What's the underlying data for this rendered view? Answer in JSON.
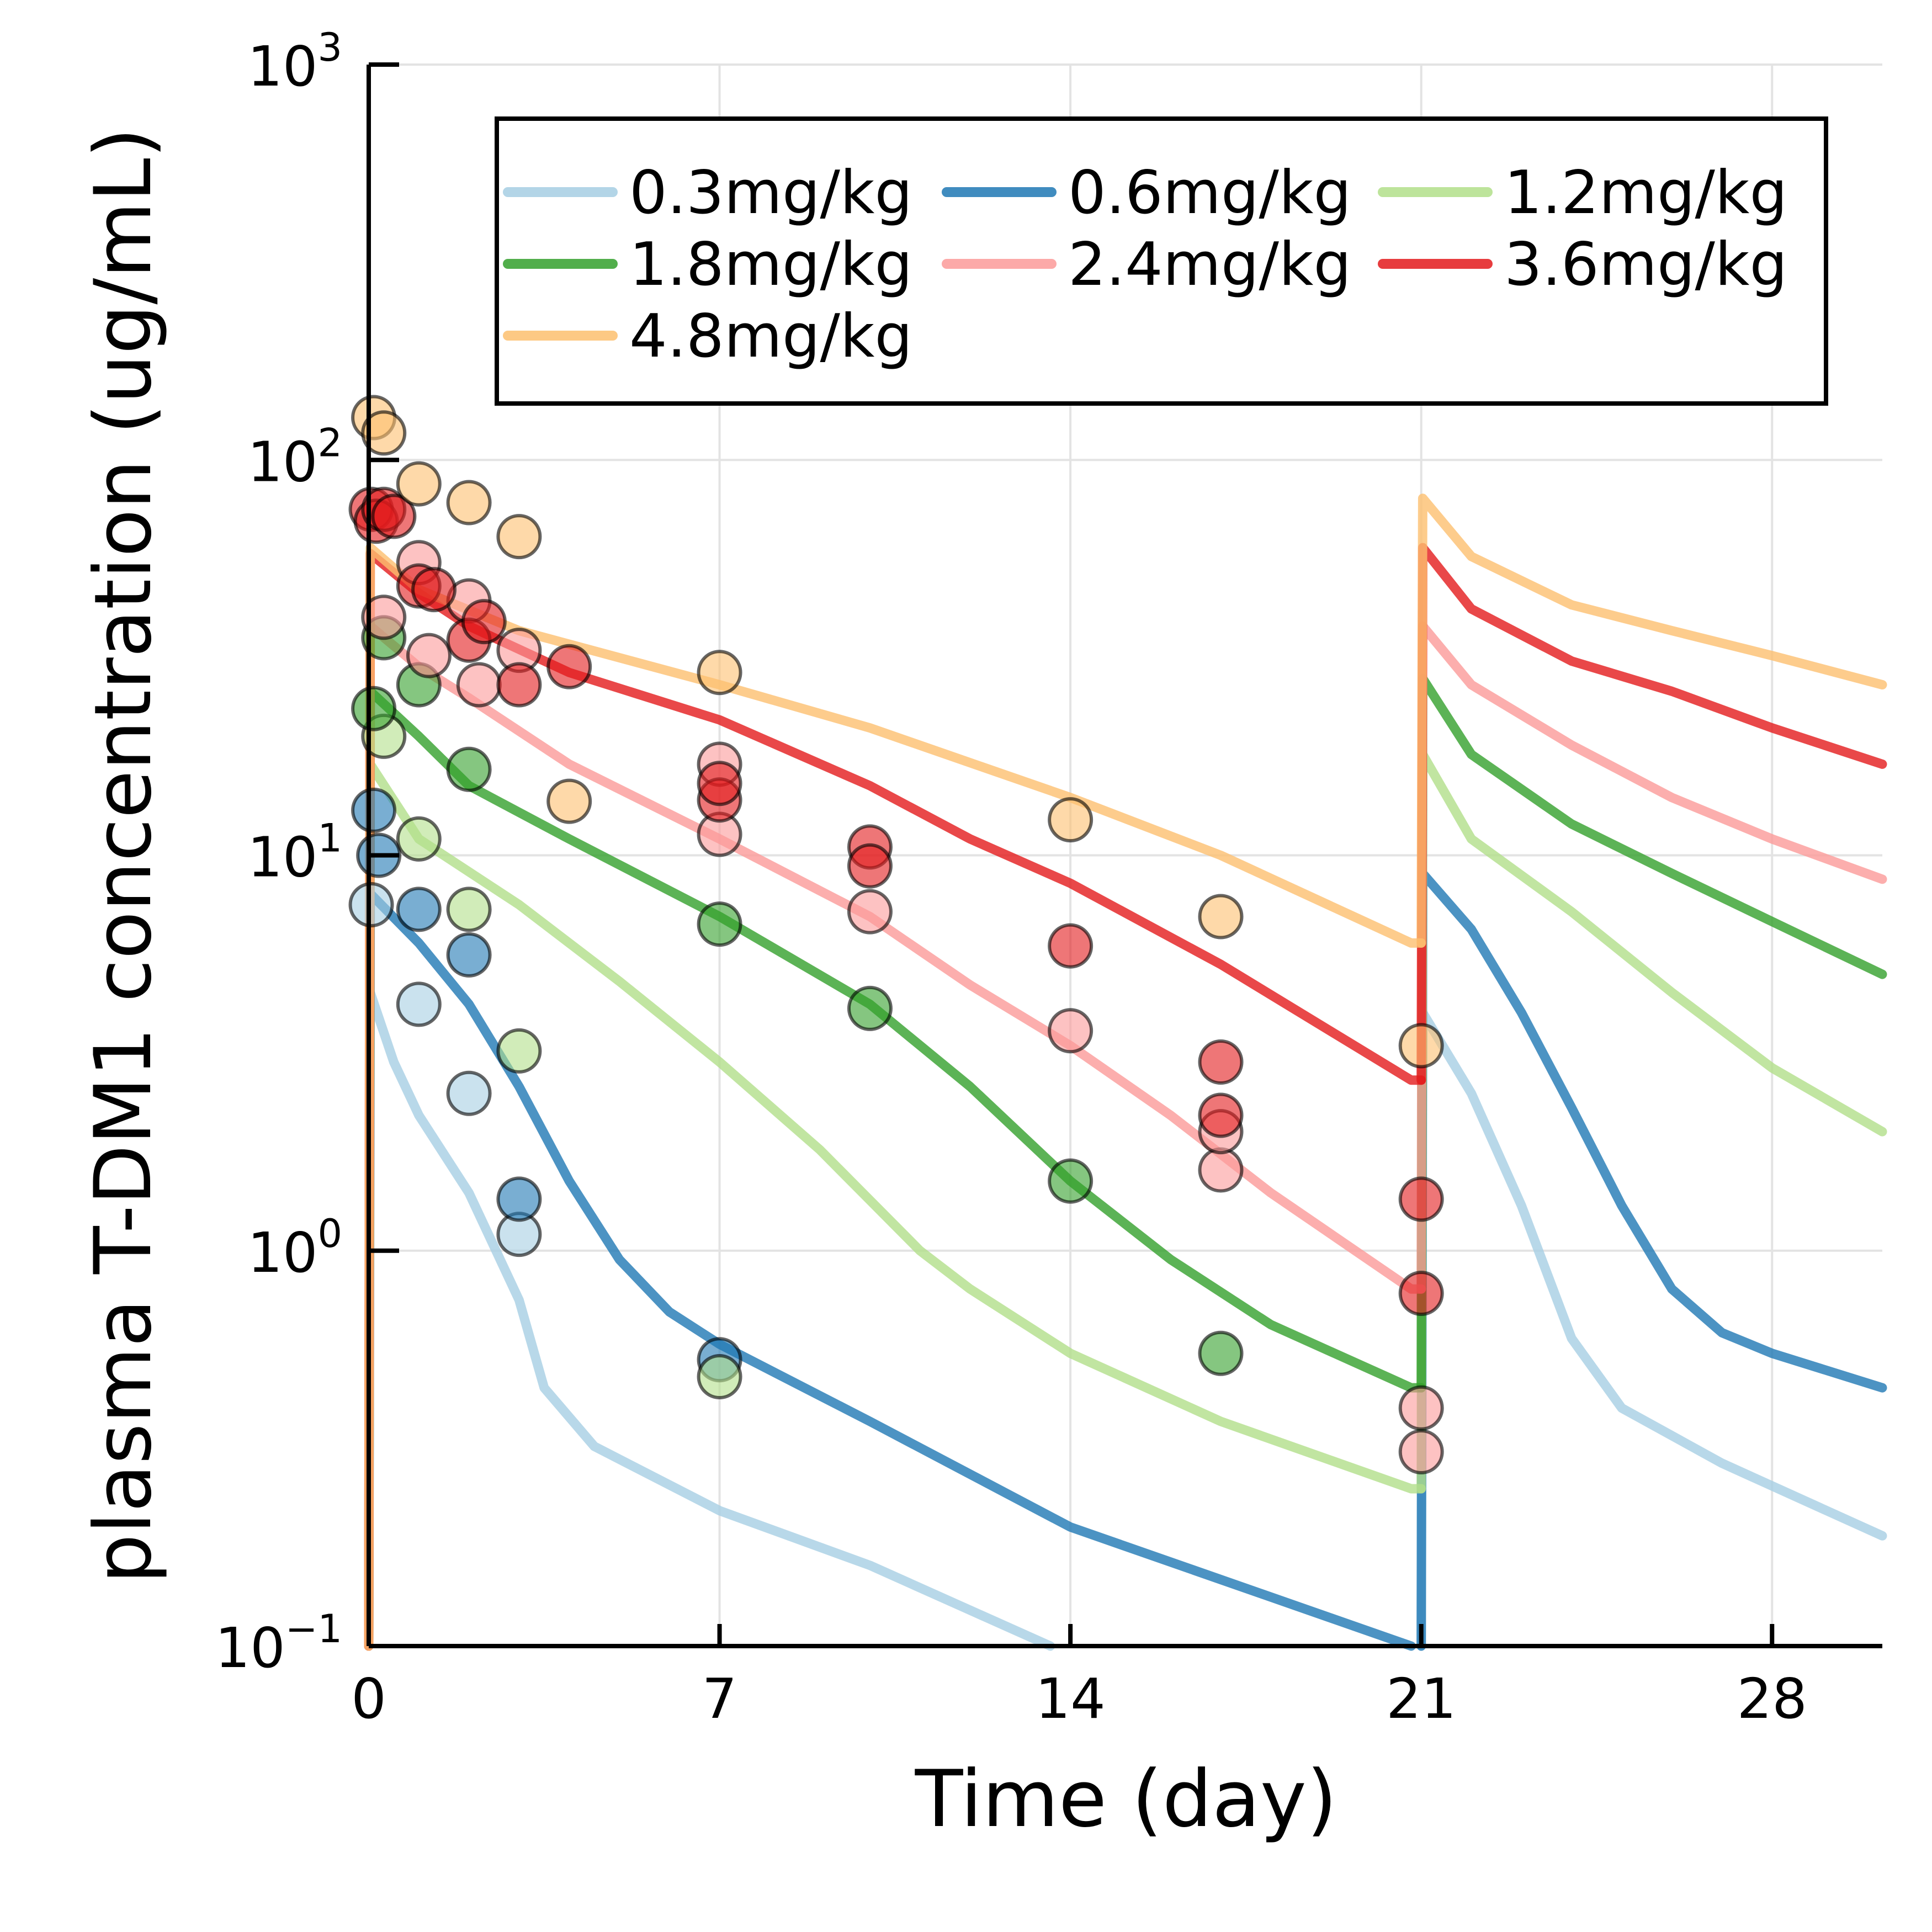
{
  "chart_data": {
    "type": "line",
    "title": "",
    "xlabel": "Time (day)",
    "ylabel": "plasma T-DM1 concentration (ug/mL)",
    "xlim": [
      0,
      30.2
    ],
    "ylim": [
      0.1,
      1000
    ],
    "yscale": "log",
    "x_ticks": [
      0,
      7,
      14,
      21,
      28
    ],
    "y_ticks": [
      {
        "value": 0.1,
        "base": "10",
        "exp": "−1"
      },
      {
        "value": 1,
        "base": "10",
        "exp": "0"
      },
      {
        "value": 10,
        "base": "10",
        "exp": "1"
      },
      {
        "value": 100,
        "base": "10",
        "exp": "2"
      },
      {
        "value": 1000,
        "base": "10",
        "exp": "3"
      }
    ],
    "grid": true,
    "legend_position": "top-right",
    "series": [
      {
        "name": "0.3mg/kg",
        "color": "#a6cee3",
        "line": [
          [
            0,
            0.1
          ],
          [
            0.03,
            4.5
          ],
          [
            0.5,
            3.0
          ],
          [
            1,
            2.2
          ],
          [
            2,
            1.4
          ],
          [
            3,
            0.75
          ],
          [
            3.5,
            0.45
          ],
          [
            4.5,
            0.32
          ],
          [
            7,
            0.22
          ],
          [
            10,
            0.16
          ],
          [
            13.6,
            0.1
          ]
        ],
        "line2": [
          [
            21,
            0.1
          ],
          [
            21.03,
            4.0
          ],
          [
            22,
            2.5
          ],
          [
            23,
            1.3
          ],
          [
            24,
            0.6
          ],
          [
            25,
            0.4
          ],
          [
            27,
            0.29
          ],
          [
            30.2,
            0.19
          ]
        ],
        "points": [
          [
            0.05,
            7.5
          ],
          [
            1,
            4.2
          ],
          [
            2,
            2.5
          ],
          [
            3,
            1.1
          ]
        ]
      },
      {
        "name": "0.6mg/kg",
        "color": "#1f78b4",
        "line": [
          [
            0,
            0.1
          ],
          [
            0.03,
            8.0
          ],
          [
            1,
            6.0
          ],
          [
            2,
            4.2
          ],
          [
            3,
            2.6
          ],
          [
            4,
            1.5
          ],
          [
            5,
            0.95
          ],
          [
            6,
            0.7
          ],
          [
            7,
            0.58
          ],
          [
            10,
            0.37
          ],
          [
            14,
            0.2
          ],
          [
            20.8,
            0.1
          ]
        ],
        "line2": [
          [
            21,
            0.1
          ],
          [
            21.03,
            9.0
          ],
          [
            22,
            6.5
          ],
          [
            23,
            4.0
          ],
          [
            24,
            2.3
          ],
          [
            25,
            1.3
          ],
          [
            26,
            0.8
          ],
          [
            27,
            0.62
          ],
          [
            28,
            0.55
          ],
          [
            30.2,
            0.45
          ]
        ],
        "points": [
          [
            0.1,
            13
          ],
          [
            0.2,
            10
          ],
          [
            1,
            7.3
          ],
          [
            2,
            5.6
          ],
          [
            3,
            1.35
          ],
          [
            7,
            0.53
          ]
        ]
      },
      {
        "name": "1.2mg/kg",
        "color": "#b2df8a",
        "line": [
          [
            0,
            0.1
          ],
          [
            0.03,
            17
          ],
          [
            1,
            11
          ],
          [
            3,
            7.5
          ],
          [
            5,
            4.8
          ],
          [
            7,
            3.0
          ],
          [
            9,
            1.8
          ],
          [
            11,
            1.0
          ],
          [
            12,
            0.8
          ],
          [
            14,
            0.55
          ],
          [
            17,
            0.37
          ],
          [
            20.8,
            0.25
          ],
          [
            21,
            0.25
          ]
        ],
        "line2": [
          [
            21,
            0.25
          ],
          [
            21.03,
            18
          ],
          [
            22,
            11
          ],
          [
            24,
            7.2
          ],
          [
            26,
            4.5
          ],
          [
            28,
            2.9
          ],
          [
            30.2,
            2.0
          ]
        ],
        "points": [
          [
            0.3,
            20
          ],
          [
            1,
            11
          ],
          [
            2,
            7.3
          ],
          [
            3,
            3.2
          ],
          [
            7,
            0.48
          ]
        ]
      },
      {
        "name": "1.8mg/kg",
        "color": "#33a02c",
        "line": [
          [
            0,
            0.1
          ],
          [
            0.03,
            26
          ],
          [
            1,
            20
          ],
          [
            2,
            15
          ],
          [
            4,
            11
          ],
          [
            7,
            7.0
          ],
          [
            10,
            4.2
          ],
          [
            12,
            2.6
          ],
          [
            14,
            1.5
          ],
          [
            16,
            0.95
          ],
          [
            18,
            0.65
          ],
          [
            20.8,
            0.45
          ],
          [
            21,
            0.45
          ]
        ],
        "line2": [
          [
            21,
            0.45
          ],
          [
            21.03,
            28
          ],
          [
            22,
            18
          ],
          [
            24,
            12
          ],
          [
            26,
            9.0
          ],
          [
            28,
            6.8
          ],
          [
            30.2,
            5.0
          ]
        ],
        "points": [
          [
            0.1,
            23.5
          ],
          [
            0.3,
            35.5
          ],
          [
            1,
            27
          ],
          [
            2,
            16.5
          ],
          [
            7,
            6.7
          ],
          [
            10,
            4.1
          ],
          [
            14,
            1.5
          ],
          [
            17,
            0.55
          ]
        ]
      },
      {
        "name": "2.4mg/kg",
        "color": "#fb9a99",
        "line": [
          [
            0,
            0.1
          ],
          [
            0.03,
            38
          ],
          [
            1,
            30
          ],
          [
            2,
            25
          ],
          [
            4,
            17
          ],
          [
            7,
            11
          ],
          [
            10,
            7.0
          ],
          [
            12,
            4.7
          ],
          [
            14,
            3.3
          ],
          [
            16,
            2.2
          ],
          [
            18,
            1.4
          ],
          [
            20.8,
            0.8
          ],
          [
            21,
            0.8
          ]
        ],
        "line2": [
          [
            21,
            0.8
          ],
          [
            21.03,
            38
          ],
          [
            22,
            27
          ],
          [
            24,
            19
          ],
          [
            26,
            14
          ],
          [
            28,
            11
          ],
          [
            30.2,
            8.7
          ]
        ],
        "points": [
          [
            0.3,
            40
          ],
          [
            1,
            55
          ],
          [
            1.2,
            32
          ],
          [
            2,
            44
          ],
          [
            2.2,
            27
          ],
          [
            3,
            33
          ],
          [
            7,
            17
          ],
          [
            7,
            11.3
          ],
          [
            10,
            7.2
          ],
          [
            14,
            3.6
          ],
          [
            17,
            1.6
          ],
          [
            17,
            2.0
          ],
          [
            21,
            0.4
          ],
          [
            21,
            0.31
          ]
        ]
      },
      {
        "name": "3.6mg/kg",
        "color": "#e31a1c",
        "line": [
          [
            0,
            0.1
          ],
          [
            0.03,
            58
          ],
          [
            1,
            46
          ],
          [
            2,
            38
          ],
          [
            4,
            29
          ],
          [
            7,
            22
          ],
          [
            10,
            15
          ],
          [
            12,
            11
          ],
          [
            14,
            8.5
          ],
          [
            17,
            5.3
          ],
          [
            20.8,
            2.7
          ],
          [
            21,
            2.7
          ]
        ],
        "line2": [
          [
            21,
            2.7
          ],
          [
            21.03,
            60
          ],
          [
            22,
            42
          ],
          [
            24,
            31
          ],
          [
            26,
            26
          ],
          [
            28,
            21
          ],
          [
            30.2,
            17
          ]
        ],
        "points": [
          [
            0.05,
            75
          ],
          [
            0.15,
            70
          ],
          [
            0.3,
            75
          ],
          [
            0.5,
            72
          ],
          [
            1,
            48
          ],
          [
            1.3,
            47
          ],
          [
            2,
            35
          ],
          [
            2.3,
            39
          ],
          [
            3,
            27
          ],
          [
            4,
            30
          ],
          [
            7,
            13.8
          ],
          [
            7,
            15.2
          ],
          [
            10,
            10.5
          ],
          [
            10,
            9.4
          ],
          [
            14,
            5.9
          ],
          [
            17,
            3.0
          ],
          [
            17,
            2.2
          ],
          [
            21,
            1.35
          ],
          [
            21,
            0.78
          ]
        ]
      },
      {
        "name": "4.8mg/kg",
        "color": "#fdbf6f",
        "line": [
          [
            0,
            0.1
          ],
          [
            0.03,
            60
          ],
          [
            1,
            47
          ],
          [
            3,
            37
          ],
          [
            7,
            27
          ],
          [
            10,
            21
          ],
          [
            14,
            14
          ],
          [
            17,
            10
          ],
          [
            20.8,
            6.0
          ],
          [
            21,
            6.0
          ]
        ],
        "line2": [
          [
            21,
            6.0
          ],
          [
            21.03,
            80
          ],
          [
            22,
            57
          ],
          [
            24,
            43
          ],
          [
            26,
            37
          ],
          [
            28,
            32
          ],
          [
            30.2,
            27
          ]
        ],
        "points": [
          [
            0.1,
            128
          ],
          [
            0.3,
            117
          ],
          [
            1,
            87
          ],
          [
            2,
            78
          ],
          [
            3,
            64
          ],
          [
            4,
            13.7
          ],
          [
            7,
            29
          ],
          [
            14,
            12.3
          ],
          [
            17,
            7.0
          ],
          [
            21,
            3.3
          ]
        ]
      }
    ]
  }
}
